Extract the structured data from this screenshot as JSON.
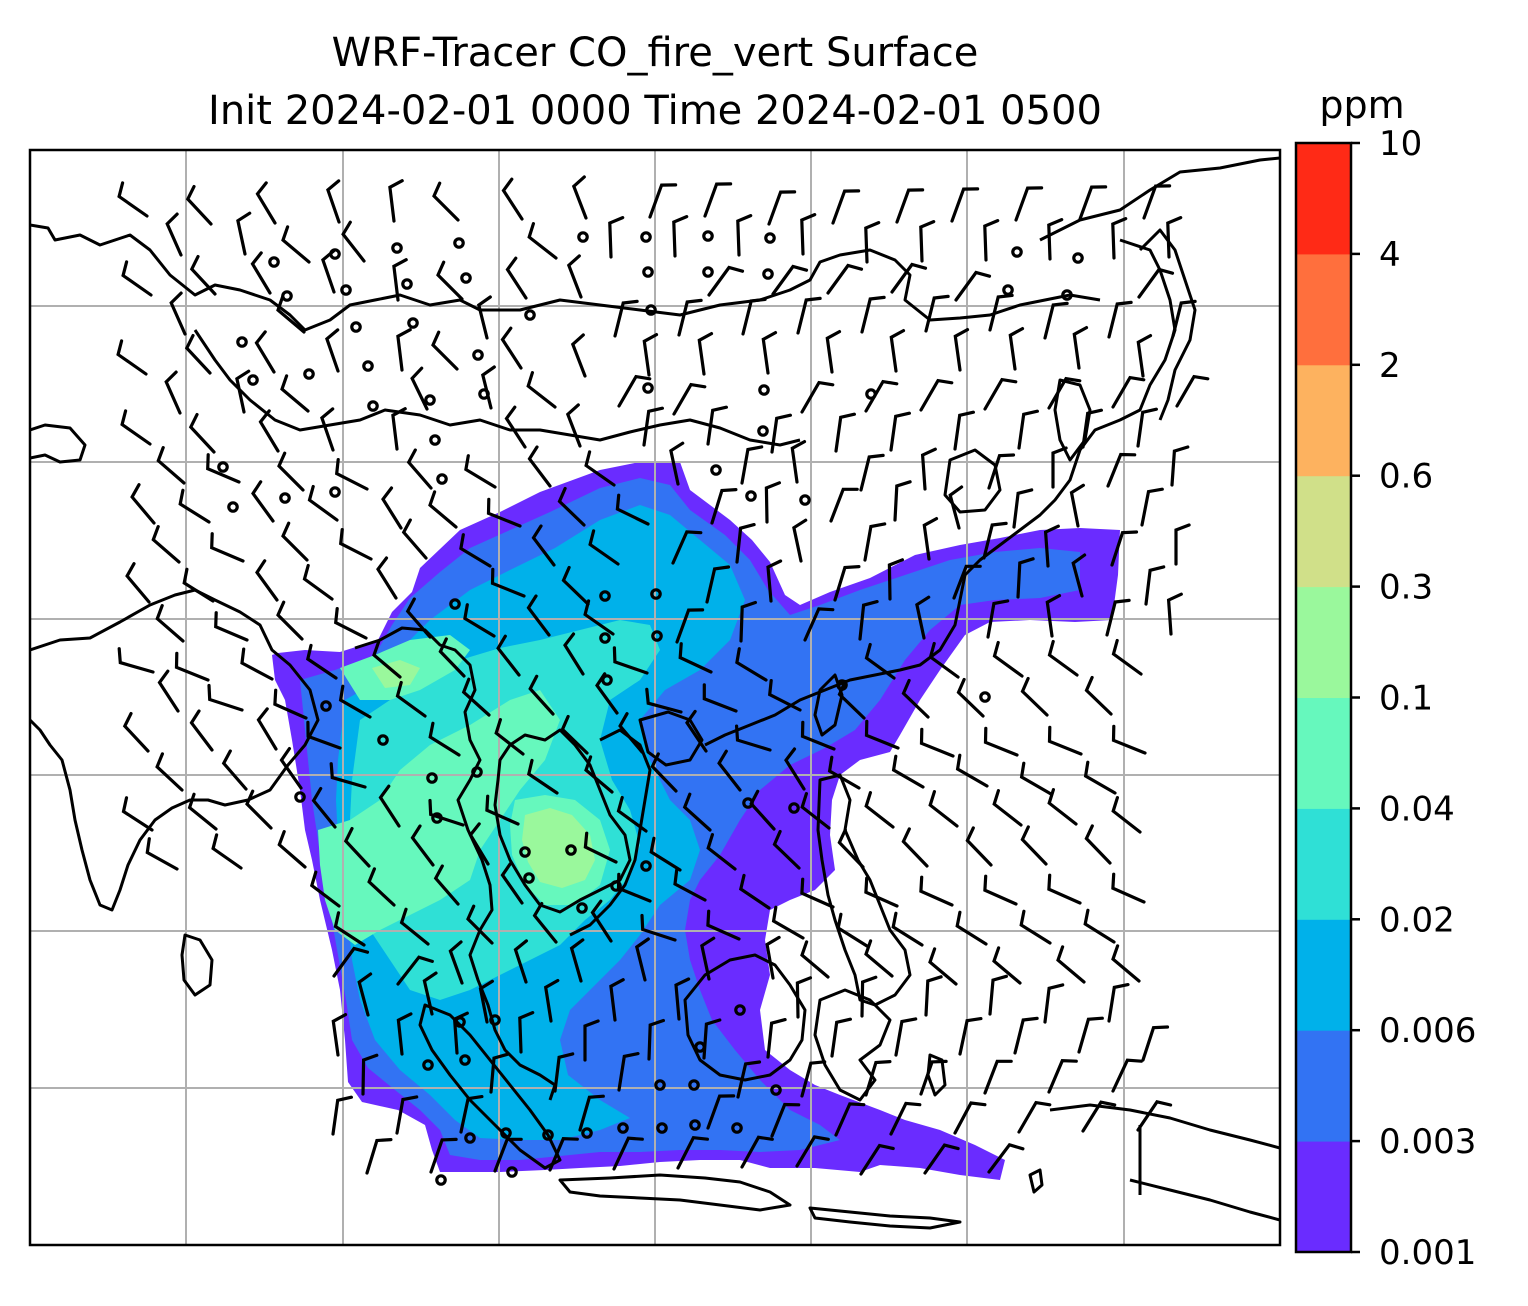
{
  "title": {
    "line1": "WRF-Tracer CO_fire_vert Surface",
    "line2": "Init 2024-02-01 0000 Time 2024-02-01 0500"
  },
  "colorbar": {
    "unit": "ppm",
    "levels": [
      "0.001",
      "0.003",
      "0.006",
      "0.02",
      "0.04",
      "0.1",
      "0.3",
      "0.6",
      "2",
      "4",
      "10"
    ],
    "colors": [
      "#6a2cff",
      "#3273f3",
      "#00b1ea",
      "#2fe0d6",
      "#66f8bd",
      "#9af89c",
      "#d0e089",
      "#fdb25f",
      "#ff6f3d",
      "#ff2a16"
    ]
  },
  "map": {
    "gridlines": true,
    "field": "CO_fire_vert surface concentration",
    "overlay": "wind barbs",
    "coastlines": true
  }
}
